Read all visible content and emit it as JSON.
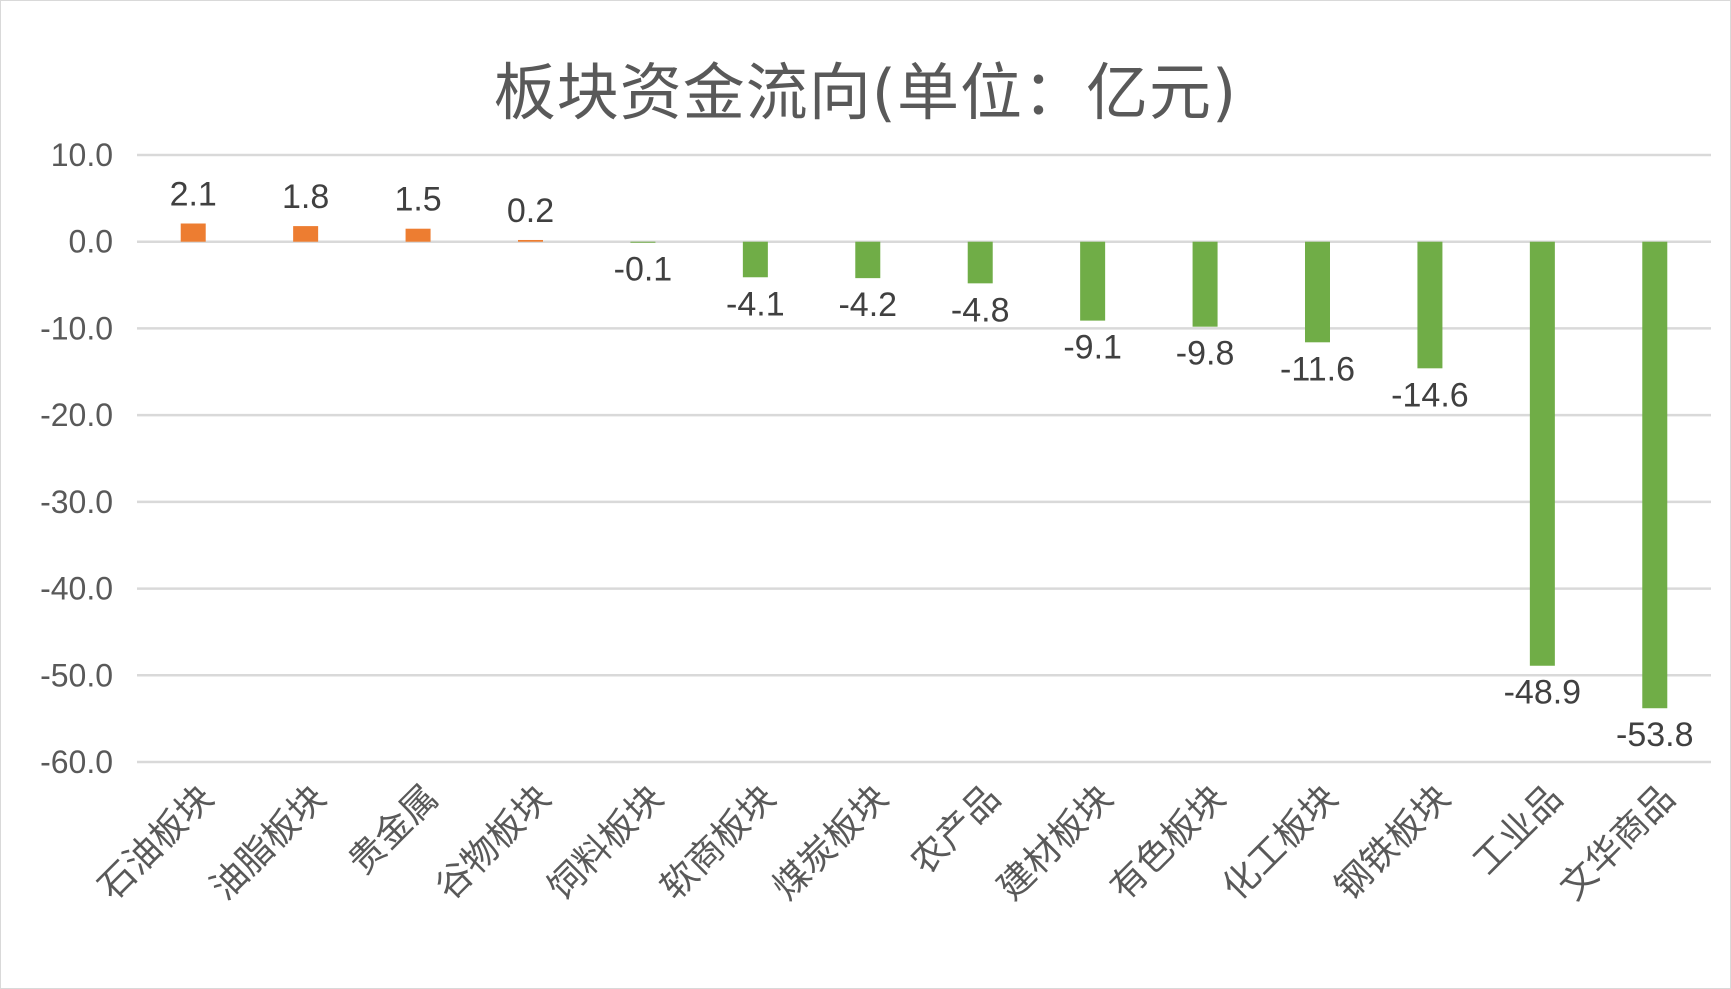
{
  "chart_data": {
    "type": "bar",
    "title": "板块资金流向(单位：亿元)",
    "xlabel": "",
    "ylabel": "",
    "ylim": [
      -60,
      10
    ],
    "yticks": [
      10,
      0,
      -10,
      -20,
      -30,
      -40,
      -50,
      -60
    ],
    "ytick_labels": [
      "10.0",
      "0.0",
      "-10.0",
      "-20.0",
      "-30.0",
      "-40.0",
      "-50.0",
      "-60.0"
    ],
    "grid": true,
    "legend": "none",
    "categories": [
      "石油板块",
      "油脂板块",
      "贵金属",
      "谷物板块",
      "饲料板块",
      "软商板块",
      "煤炭板块",
      "农产品",
      "建材板块",
      "有色板块",
      "化工板块",
      "钢铁板块",
      "工业品",
      "文华商品"
    ],
    "values": [
      2.1,
      1.8,
      1.5,
      0.2,
      -0.1,
      -4.1,
      -4.2,
      -4.8,
      -9.1,
      -9.8,
      -11.6,
      -14.6,
      -48.9,
      -53.8
    ],
    "data_labels": [
      "2.1",
      "1.8",
      "1.5",
      "0.2",
      "-0.1",
      "-4.1",
      "-4.2",
      "-4.8",
      "-9.1",
      "-9.8",
      "-11.6",
      "-14.6",
      "-48.9",
      "-53.8"
    ],
    "colors": {
      "positive": "#ed7d31",
      "negative": "#70ad47",
      "grid": "#d9d9d9"
    }
  }
}
